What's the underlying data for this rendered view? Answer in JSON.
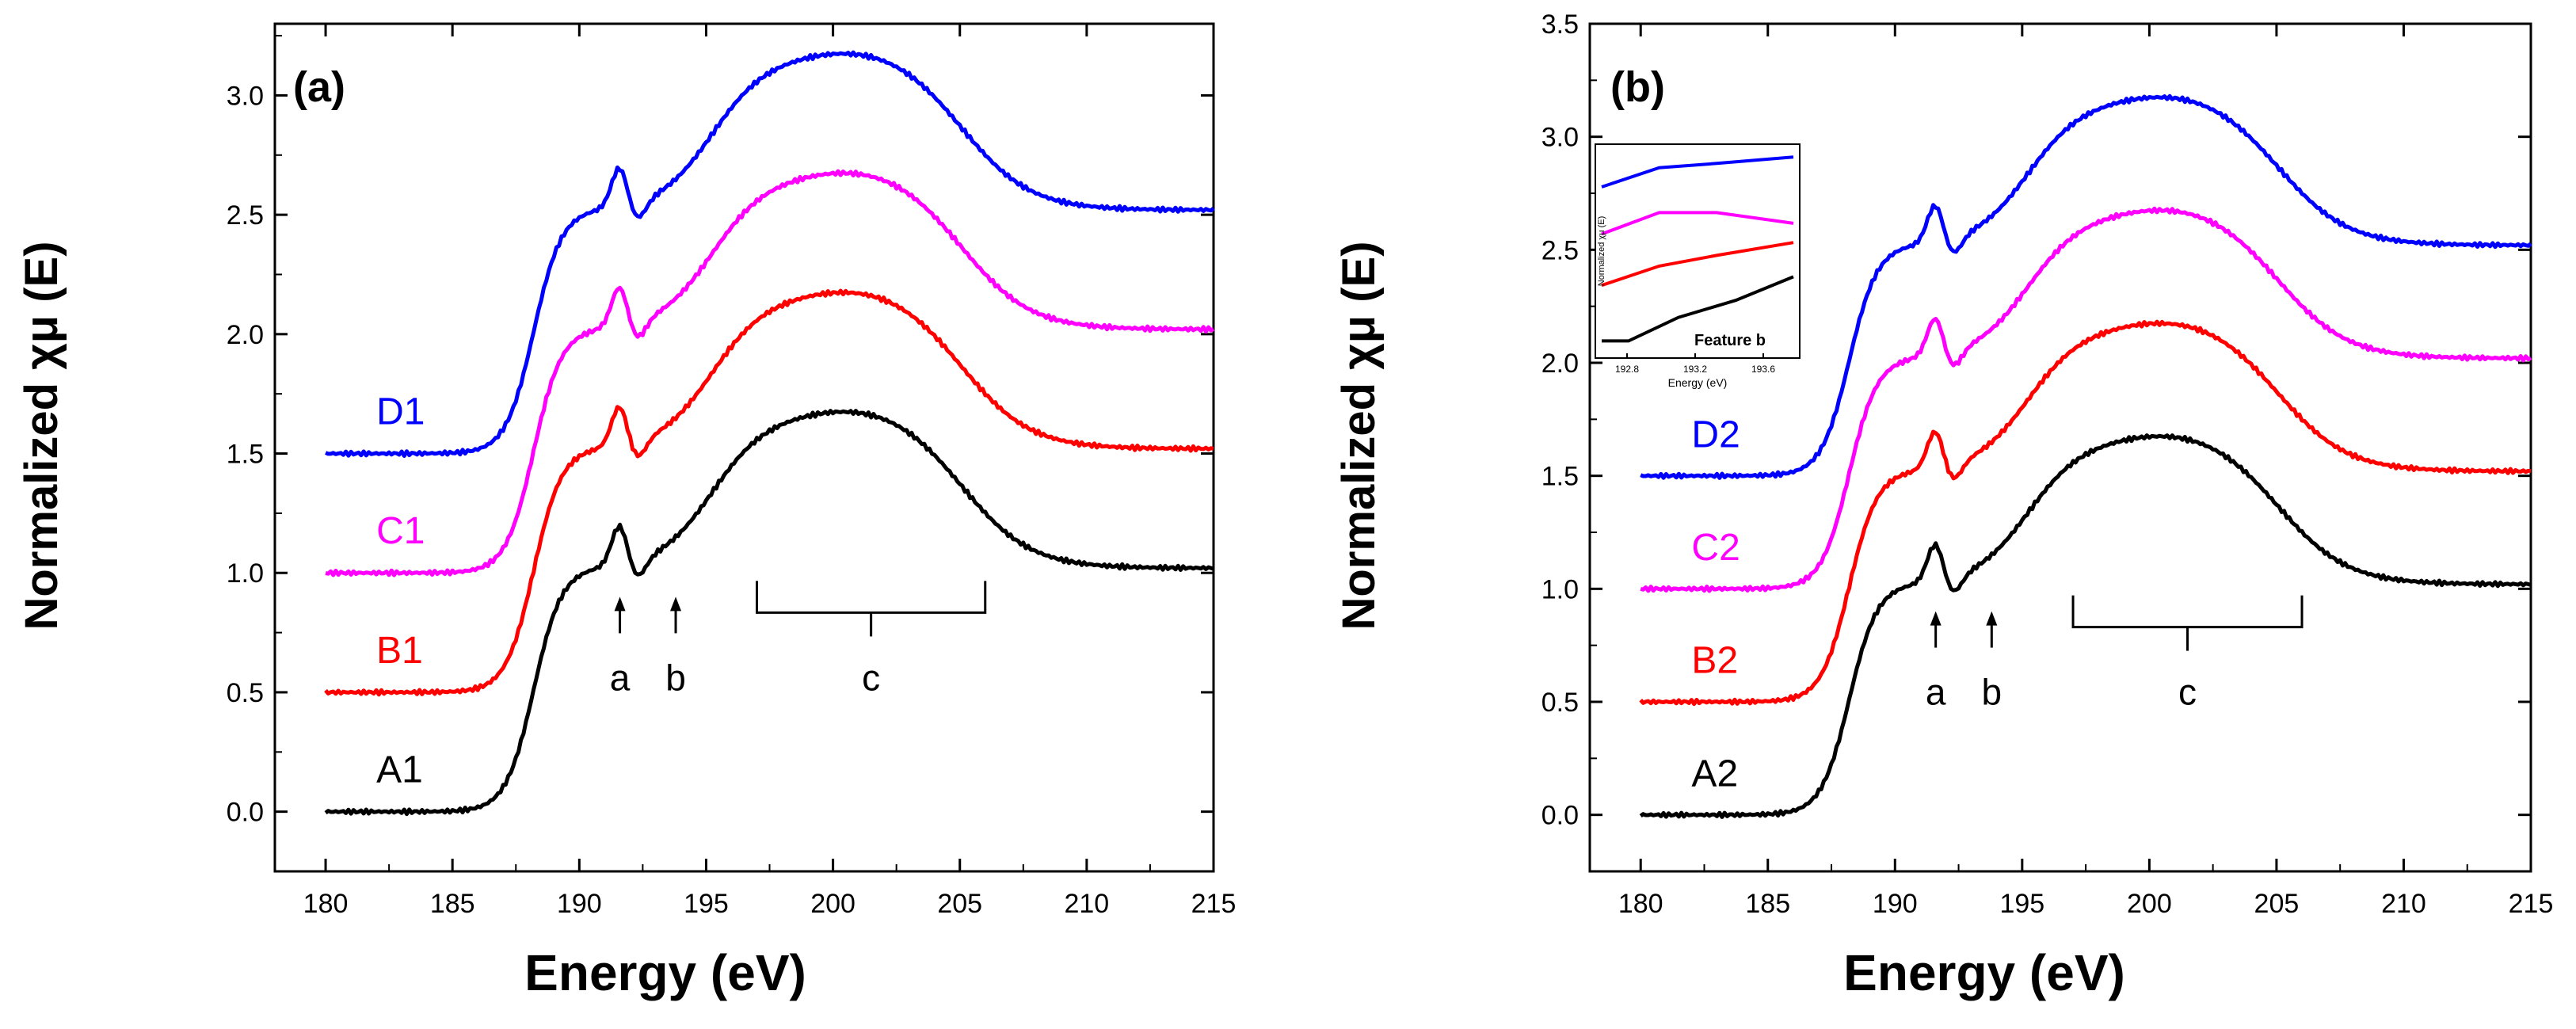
{
  "chart_data": [
    {
      "type": "line",
      "panel": "(a)",
      "xlabel": "Energy (eV)",
      "ylabel": "Normalized χμ (E)",
      "xlim": [
        178,
        215
      ],
      "ylim": [
        -0.25,
        3.3
      ],
      "xticks": [
        "180",
        "185",
        "190",
        "195",
        "200",
        "205",
        "210",
        "215"
      ],
      "yticks": [
        "0.0",
        "0.5",
        "1.0",
        "1.5",
        "2.0",
        "2.5",
        "3.0"
      ],
      "series": [
        {
          "name": "A1",
          "color": "#000000",
          "offset": 0.0
        },
        {
          "name": "B1",
          "color": "#ff0000",
          "offset": 0.5
        },
        {
          "name": "C1",
          "color": "#ff00ff",
          "offset": 1.0
        },
        {
          "name": "D1",
          "color": "#0000ff",
          "offset": 1.5
        }
      ],
      "features": [
        {
          "label": "a",
          "x": 191.6
        },
        {
          "label": "b",
          "x": 193.8
        },
        {
          "label": "c",
          "x_range": [
            197,
            206
          ]
        }
      ]
    },
    {
      "type": "line",
      "panel": "(b)",
      "xlabel": "Energy (eV)",
      "ylabel": "Normalized χμ (E)",
      "xlim": [
        178,
        215
      ],
      "ylim": [
        -0.25,
        3.5
      ],
      "xticks": [
        "180",
        "185",
        "190",
        "195",
        "200",
        "205",
        "210",
        "215"
      ],
      "yticks": [
        "0.0",
        "0.5",
        "1.0",
        "1.5",
        "2.0",
        "2.5",
        "3.0",
        "3.5"
      ],
      "series": [
        {
          "name": "A2",
          "color": "#000000",
          "offset": 0.0
        },
        {
          "name": "B2",
          "color": "#ff0000",
          "offset": 0.5
        },
        {
          "name": "C2",
          "color": "#ff00ff",
          "offset": 1.0
        },
        {
          "name": "D2",
          "color": "#0000ff",
          "offset": 1.5
        }
      ],
      "features": [
        {
          "label": "a",
          "x": 191.6
        },
        {
          "label": "b",
          "x": 193.8
        },
        {
          "label": "c",
          "x_range": [
            197,
            206
          ]
        }
      ],
      "inset": {
        "title": "Feature b",
        "xlabel": "Energy (eV)",
        "ylabel": "Normalized χμ (E)",
        "xticks": [
          "192.8",
          "193.2",
          "193.6"
        ],
        "series_colors": [
          "#0000ff",
          "#ff00ff",
          "#ff0000",
          "#000000"
        ]
      }
    }
  ]
}
